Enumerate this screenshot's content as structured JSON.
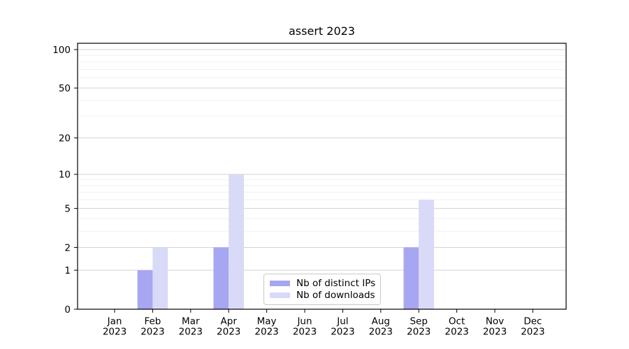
{
  "chart_data": {
    "type": "bar",
    "title": "assert 2023",
    "categories": [
      "Jan",
      "Feb",
      "Mar",
      "Apr",
      "May",
      "Jun",
      "Jul",
      "Aug",
      "Sep",
      "Oct",
      "Nov",
      "Dec"
    ],
    "x_year_suffix": "2023",
    "series": [
      {
        "key": "distinct-ips",
        "name": "Nb of distinct IPs",
        "color": "#a6a6f1",
        "values": [
          0,
          1,
          0,
          2,
          0,
          0,
          0,
          0,
          2,
          0,
          0,
          0
        ]
      },
      {
        "key": "downloads",
        "name": "Nb of downloads",
        "color": "#d9d9f8",
        "values": [
          0,
          2,
          0,
          10,
          0,
          0,
          0,
          0,
          6,
          0,
          0,
          0
        ]
      }
    ],
    "yscale": "log1p",
    "ylim": [
      0,
      112
    ],
    "yticks": [
      0,
      1,
      2,
      5,
      10,
      20,
      50,
      100
    ],
    "yticks_minor": [
      3,
      4,
      6,
      7,
      8,
      9,
      30,
      40,
      60,
      70,
      80,
      90
    ],
    "grid": "horizontal",
    "legend_position": "lower center",
    "colors": {
      "major_grid": "#d3d3d3",
      "minor_grid": "#f0f0f0",
      "axis": "#000000",
      "text": "#000000",
      "legend_border": "#c9c9c9",
      "background": "#ffffff"
    }
  }
}
